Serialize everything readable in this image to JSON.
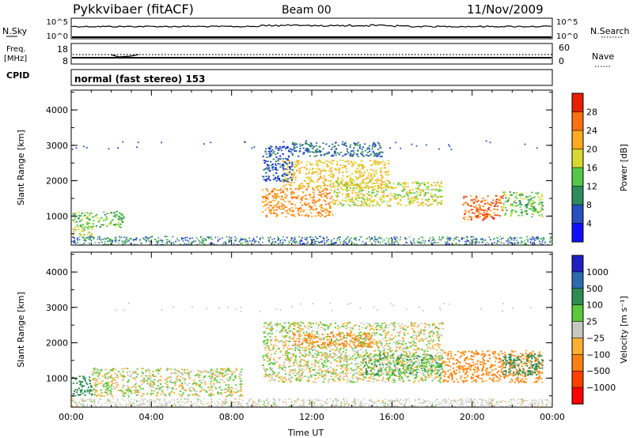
{
  "header": {
    "station": "Pykkvibaer (fitACF)",
    "beam": "Beam 00",
    "date": "11/Nov/2009"
  },
  "nsky_panel": {
    "label": "N.Sky",
    "left_ticks": [
      "10^5",
      "10^0"
    ],
    "right_ticks": [
      "10^5",
      "10^0"
    ],
    "right_label": "N.Search"
  },
  "freq_panel": {
    "label_line1": "Freq.",
    "label_line2": "[MHz]",
    "left_ticks": [
      "18",
      "8"
    ],
    "right_ticks": [
      "60",
      "0"
    ],
    "right_label": "Nave"
  },
  "cpid": {
    "label": "CPID",
    "text": "normal (fast stereo) 153"
  },
  "colors": {
    "power_scale": [
      "#1010ff",
      "#2850c0",
      "#2e8c5a",
      "#55c84a",
      "#d8d830",
      "#ffaa20",
      "#ff7010",
      "#e82000"
    ],
    "velocity_scale": [
      "#2020c0",
      "#2e6ab0",
      "#2e8c50",
      "#5cc83a",
      "#c8c8c0",
      "#ffb030",
      "#ff8010",
      "#ff4000",
      "#ff0000"
    ]
  },
  "chart_data": [
    {
      "type": "heatmap",
      "title": "",
      "ylabel": "Slant Range [km]",
      "xlabel": "",
      "ylim": [
        180,
        4560
      ],
      "yticks": [
        "1000",
        "2000",
        "3000",
        "4000"
      ],
      "xticks": [
        "00:00",
        "04:00",
        "08:00",
        "12:00",
        "16:00",
        "20:00",
        "00:00"
      ],
      "colorbar": {
        "label": "Power [dB]",
        "ticks": [
          "28",
          "24",
          "20",
          "16",
          "12",
          "8",
          "4"
        ],
        "range": [
          0,
          32
        ]
      },
      "regions": [
        {
          "t0": 0.0,
          "t1": 2.6,
          "r0": 700,
          "r1": 1150,
          "value": 14
        },
        {
          "t0": 0.0,
          "t1": 1.0,
          "r0": 450,
          "r1": 700,
          "value": 18
        },
        {
          "t0": 9.5,
          "t1": 13.0,
          "r0": 1000,
          "r1": 1800,
          "value": 24
        },
        {
          "t0": 10.5,
          "t1": 15.8,
          "r0": 1800,
          "r1": 2600,
          "value": 20
        },
        {
          "t0": 13.0,
          "t1": 18.5,
          "r0": 1300,
          "r1": 2000,
          "value": 18
        },
        {
          "t0": 19.5,
          "t1": 21.5,
          "r0": 900,
          "r1": 1600,
          "value": 26
        },
        {
          "t0": 21.5,
          "t1": 23.5,
          "r0": 1000,
          "r1": 1700,
          "value": 14
        },
        {
          "t0": 9.5,
          "t1": 11.0,
          "r0": 2000,
          "r1": 3000,
          "value": 6
        },
        {
          "t0": 11.0,
          "t1": 15.5,
          "r0": 2700,
          "r1": 3100,
          "value": 8
        }
      ]
    },
    {
      "type": "heatmap",
      "title": "",
      "ylabel": "Slant Range [km]",
      "xlabel": "Time UT",
      "ylim": [
        180,
        4560
      ],
      "yticks": [
        "1000",
        "2000",
        "3000",
        "4000"
      ],
      "xticks": [
        "00:00",
        "04:00",
        "08:00",
        "12:00",
        "16:00",
        "20:00",
        "00:00"
      ],
      "colorbar": {
        "label": "Velocity [m s⁻¹]",
        "ticks": [
          "1000",
          "500",
          "100",
          "25",
          "−25",
          "−100",
          "−500",
          "−1000"
        ],
        "range": [
          -1000,
          1000
        ]
      },
      "regions": [
        {
          "t0": 0.0,
          "t1": 1.0,
          "r0": 500,
          "r1": 1100,
          "value": 200
        },
        {
          "t0": 1.0,
          "t1": 8.5,
          "r0": 500,
          "r1": 1300,
          "value": 0
        },
        {
          "t0": 9.5,
          "t1": 18.5,
          "r0": 900,
          "r1": 2600,
          "value": 0
        },
        {
          "t0": 11.0,
          "t1": 15.0,
          "r0": 1900,
          "r1": 2300,
          "value": -150
        },
        {
          "t0": 14.5,
          "t1": 18.5,
          "r0": 1100,
          "r1": 1700,
          "value": 80
        },
        {
          "t0": 18.5,
          "t1": 23.5,
          "r0": 900,
          "r1": 1800,
          "value": -150
        },
        {
          "t0": 21.5,
          "t1": 23.5,
          "r0": 1100,
          "r1": 1700,
          "value": 300
        }
      ]
    }
  ]
}
